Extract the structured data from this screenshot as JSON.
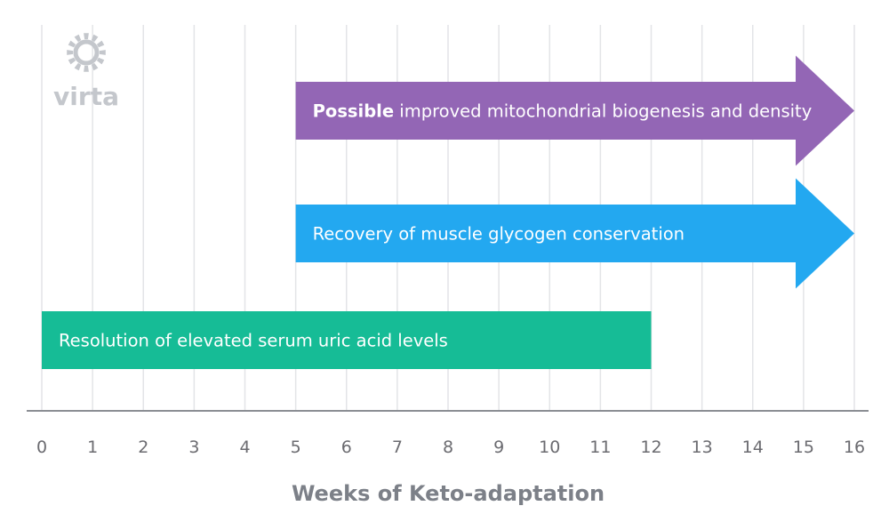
{
  "brand": {
    "logo_text": "virta",
    "logo_icon": "sun-gear-icon",
    "logo_color": "#c4c7cc"
  },
  "chart_data": {
    "type": "timeline-bar",
    "xlabel": "Weeks of Keto-adaptation",
    "xlim": [
      0,
      16
    ],
    "ticks": [
      0,
      1,
      2,
      3,
      4,
      5,
      6,
      7,
      8,
      9,
      10,
      11,
      12,
      13,
      14,
      15,
      16
    ],
    "grid": true,
    "bars": [
      {
        "label_bold": "Possible",
        "label": "improved mitochondrial biogenesis and density",
        "start": 5,
        "end": 16,
        "arrow": true,
        "color": "#9366b5"
      },
      {
        "label_bold": "",
        "label": "Recovery of muscle glycogen conservation",
        "start": 5,
        "end": 16,
        "arrow": true,
        "color": "#23a8f0"
      },
      {
        "label_bold": "",
        "label": "Resolution of elevated serum uric acid levels",
        "start": 0,
        "end": 12,
        "arrow": false,
        "color": "#16bc96"
      }
    ]
  }
}
